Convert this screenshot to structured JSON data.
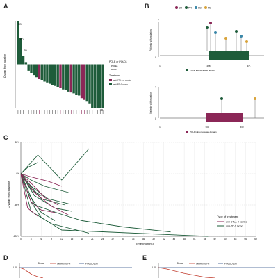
{
  "panels": {
    "A": "A",
    "B": "B",
    "C": "C",
    "D": "D",
    "E": "E"
  },
  "colors": {
    "combo": "#8b2757",
    "mono": "#1e5c3a",
    "domain_pole": "#1e5c3a",
    "domain_pold": "#8b2757",
    "cr": "#8b2757",
    "pr": "#1e5c3a",
    "sd": "#3a87a8",
    "pd": "#d8a33a",
    "km_red": "#c0392b",
    "km_blue": "#2c4f86"
  },
  "panel_a": {
    "ylabel": "Change from baseline",
    "legend": {
      "pole_title": "POLE or POLD1",
      "pole_items": [
        "POLE1",
        "POLE"
      ],
      "treatment_title": "Treatment",
      "treatment_items": [
        "anti-CTLA-4 combo",
        "anti-PD-1 mono"
      ]
    },
    "top_labels": [
      "PD",
      "PD",
      "SD"
    ],
    "bottom_label": "CR"
  },
  "panel_b": {
    "top": {
      "legend": [
        "CR",
        "PR",
        "SD",
        "PD"
      ],
      "ylabel": "Patients with mutation",
      "y_top": "7",
      "y_bottom": "0",
      "axis_ticks": [
        "1",
        "268",
        "471"
      ],
      "domain_label": "POLE Exonuclease domain"
    },
    "bottom": {
      "ylabel": "Patients with mutation",
      "y_top": "2",
      "y_bottom": "0",
      "axis_ticks": [
        "1",
        "304",
        "533"
      ],
      "domain_label": "POLD1 Exonuclease domain"
    }
  },
  "chart_data": [
    {
      "type": "bar",
      "panel": "A",
      "ylabel": "Change from baseline",
      "values": [
        100,
        60,
        20,
        5,
        -15,
        -20,
        -25,
        -30,
        -33,
        -36,
        -40,
        -42,
        -45,
        -48,
        -50,
        -52,
        -55,
        -58,
        -60,
        -63,
        -65,
        -67,
        -70,
        -72,
        -78,
        -82,
        -86,
        -90,
        -100,
        -100,
        -100,
        -100,
        -100
      ],
      "treatment": [
        "mono",
        "mono",
        "mono",
        "mono",
        "mono",
        "mono",
        "mono",
        "mono",
        "combo",
        "mono",
        "mono",
        "mono",
        "mono",
        "mono",
        "mono",
        "mono",
        "combo",
        "mono",
        "mono",
        "mono",
        "combo",
        "mono",
        "mono",
        "mono",
        "combo",
        "combo",
        "mono",
        "mono",
        "mono",
        "mono",
        "mono",
        "mono",
        "mono"
      ],
      "ylim": [
        -100,
        100
      ]
    },
    {
      "type": "line",
      "panel": "C",
      "xlabel": "Time (months)",
      "ylabel": "Change from baseline",
      "ylim": [
        -100,
        50
      ],
      "xlim": [
        0,
        69
      ],
      "x_ticks": [
        0,
        3,
        6,
        9,
        12,
        15,
        18,
        21,
        24,
        27,
        30,
        33,
        36,
        39,
        42,
        45,
        48,
        51,
        54,
        57,
        60,
        63,
        66,
        69
      ],
      "y_ticks": [
        {
          "v": 50,
          "label": "50%"
        },
        {
          "v": 0,
          "label": "0%"
        },
        {
          "v": -50,
          "label": "-50%"
        },
        {
          "v": -100,
          "label": "-100%"
        }
      ],
      "legend_title": "Type of treatment",
      "legend": [
        "anti-CTLA-4 combo",
        "anti-PD-1 mono"
      ],
      "series": [
        {
          "group": "mono",
          "x": [
            0,
            5,
            12,
            20
          ],
          "y": [
            0,
            30,
            -10,
            40
          ]
        },
        {
          "group": "mono",
          "x": [
            0,
            3,
            8,
            14
          ],
          "y": [
            0,
            -20,
            -40,
            -48
          ]
        },
        {
          "group": "mono",
          "x": [
            0,
            4,
            10,
            15
          ],
          "y": [
            0,
            -35,
            -55,
            -60
          ]
        },
        {
          "group": "mono",
          "x": [
            0,
            3,
            6,
            12,
            55
          ],
          "y": [
            0,
            -45,
            -70,
            -90,
            -100
          ]
        },
        {
          "group": "mono",
          "x": [
            0,
            3,
            9,
            20
          ],
          "y": [
            0,
            -60,
            -80,
            -95
          ]
        },
        {
          "group": "mono",
          "x": [
            0,
            2,
            6,
            10
          ],
          "y": [
            0,
            -30,
            -62,
            -75
          ]
        },
        {
          "group": "mono",
          "x": [
            0,
            3,
            6
          ],
          "y": [
            0,
            -25,
            -35
          ]
        },
        {
          "group": "mono",
          "x": [
            0,
            3,
            7,
            14
          ],
          "y": [
            0,
            -10,
            -20,
            -30
          ]
        },
        {
          "group": "mono",
          "x": [
            0,
            4,
            12,
            18,
            30,
            44
          ],
          "y": [
            0,
            -50,
            -65,
            -75,
            -85,
            -93
          ]
        },
        {
          "group": "mono",
          "x": [
            0,
            2,
            5
          ],
          "y": [
            0,
            10,
            18
          ]
        },
        {
          "group": "mono",
          "x": [
            0,
            6,
            13
          ],
          "y": [
            0,
            -40,
            -50
          ]
        },
        {
          "group": "combo",
          "x": [
            0,
            3,
            8,
            12
          ],
          "y": [
            0,
            -5,
            -12,
            -20
          ]
        },
        {
          "group": "combo",
          "x": [
            0,
            3,
            6,
            10
          ],
          "y": [
            0,
            -45,
            -58,
            -62
          ]
        },
        {
          "group": "combo",
          "x": [
            0,
            4,
            9,
            14
          ],
          "y": [
            0,
            -30,
            -52,
            -66
          ]
        },
        {
          "group": "combo",
          "x": [
            0,
            3,
            7,
            11
          ],
          "y": [
            0,
            -15,
            -38,
            -50
          ]
        },
        {
          "group": "combo",
          "x": [
            0,
            2,
            5
          ],
          "y": [
            0,
            -55,
            -68
          ]
        }
      ]
    }
  ],
  "panel_d": {
    "y_tick": "1.00",
    "strata_label": "Strata",
    "strata": [
      "dMMR/MSI-H",
      "POLE/D1pol"
    ]
  },
  "panel_e": {
    "y_tick": "1.00",
    "strata_label": "Strata",
    "strata": [
      "dMMR/MSI-H",
      "POLE/D1pol"
    ]
  }
}
